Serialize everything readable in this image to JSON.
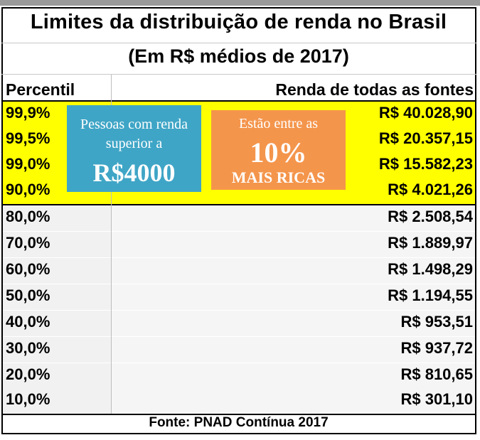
{
  "title": "Limites da distribuição de renda no Brasil",
  "subtitle": "(Em R$ médios de 2017)",
  "headers": {
    "percentile": "Percentil",
    "income": "Renda de todas as fontes"
  },
  "rows": [
    {
      "pct": "99,9%",
      "value": "R$ 40.028,90"
    },
    {
      "pct": "99,5%",
      "value": "R$ 20.357,15"
    },
    {
      "pct": "99,0%",
      "value": "R$ 15.582,23"
    },
    {
      "pct": "90,0%",
      "value": "R$ 4.021,26"
    },
    {
      "pct": "80,0%",
      "value": "R$ 2.508,54"
    },
    {
      "pct": "70,0%",
      "value": "R$ 1.889,97"
    },
    {
      "pct": "60,0%",
      "value": "R$ 1.498,29"
    },
    {
      "pct": "50,0%",
      "value": "R$ 1.194,55"
    },
    {
      "pct": "40,0%",
      "value": "R$ 953,51"
    },
    {
      "pct": "30,0%",
      "value": "R$ 937,72"
    },
    {
      "pct": "20,0%",
      "value": "R$ 810,65"
    },
    {
      "pct": "10,0%",
      "value": "R$ 301,10"
    }
  ],
  "callout_blue": {
    "line1": "Pessoas com renda",
    "line2": "superior a",
    "big": "R$4000"
  },
  "callout_orange": {
    "line1": "Estão entre as",
    "big": "10%",
    "line3": "MAIS RICAS"
  },
  "footer": "Fonte: PNAD Contínua 2017",
  "colors": {
    "highlight": "#ffff00",
    "callout_blue": "#3fa5c6",
    "callout_orange": "#f4954c",
    "row_bg": "#f1f1f1"
  }
}
